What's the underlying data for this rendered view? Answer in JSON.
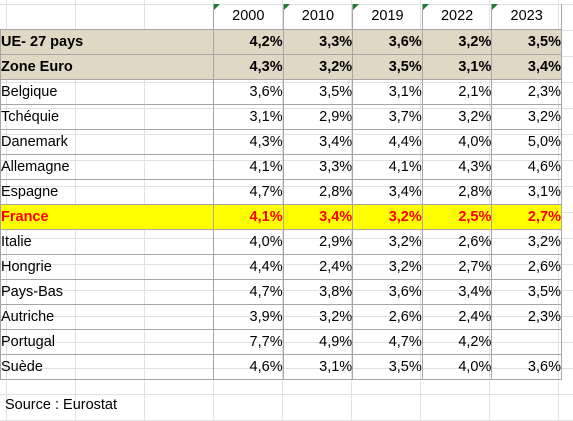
{
  "table": {
    "years": [
      "2000",
      "2010",
      "2019",
      "2022",
      "2023"
    ],
    "rows": [
      {
        "name": "UE- 27 pays",
        "values": [
          "4,2%",
          "3,3%",
          "3,6%",
          "3,2%",
          "3,5%"
        ]
      },
      {
        "name": "Zone Euro",
        "values": [
          "4,3%",
          "3,2%",
          "3,5%",
          "3,1%",
          "3,4%"
        ]
      },
      {
        "name": "Belgique",
        "values": [
          "3,6%",
          "3,5%",
          "3,1%",
          "2,1%",
          "2,3%"
        ]
      },
      {
        "name": "Tchéquie",
        "values": [
          "3,1%",
          "2,9%",
          "3,7%",
          "3,2%",
          "3,2%"
        ]
      },
      {
        "name": "Danemark",
        "values": [
          "4,3%",
          "3,4%",
          "4,4%",
          "4,0%",
          "5,0%"
        ]
      },
      {
        "name": "Allemagne",
        "values": [
          "4,1%",
          "3,3%",
          "4,1%",
          "4,3%",
          "4,6%"
        ]
      },
      {
        "name": "Espagne",
        "values": [
          "4,7%",
          "2,8%",
          "3,4%",
          "2,8%",
          "3,1%"
        ]
      },
      {
        "name": "France",
        "values": [
          "4,1%",
          "3,4%",
          "3,2%",
          "2,5%",
          "2,7%"
        ]
      },
      {
        "name": "Italie",
        "values": [
          "4,0%",
          "2,9%",
          "3,2%",
          "2,6%",
          "3,2%"
        ]
      },
      {
        "name": "Hongrie",
        "values": [
          "4,4%",
          "2,4%",
          "3,2%",
          "2,7%",
          "2,6%"
        ]
      },
      {
        "name": "Pays-Bas",
        "values": [
          "4,7%",
          "3,8%",
          "3,6%",
          "3,4%",
          "3,5%"
        ]
      },
      {
        "name": "Autriche",
        "values": [
          "3,9%",
          "3,2%",
          "2,6%",
          "2,4%",
          "2,3%"
        ]
      },
      {
        "name": "Portugal",
        "values": [
          "7,7%",
          "4,9%",
          "4,7%",
          "4,2%",
          ""
        ]
      },
      {
        "name": "Suède",
        "values": [
          "4,6%",
          "3,1%",
          "3,5%",
          "4,0%",
          "3,6%"
        ]
      }
    ]
  },
  "source": "Source : Eurostat",
  "colors": {
    "aggregate_fill": "#ddd9c4",
    "highlight_fill": "#ffff00",
    "highlight_text": "#ff0000",
    "header_marker": "#1e7d32"
  }
}
